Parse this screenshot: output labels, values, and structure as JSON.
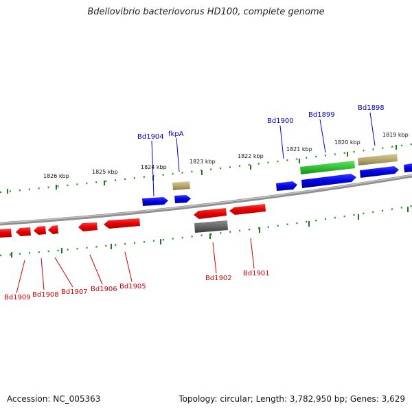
{
  "title": "Bdellovibrio bacteriovorus HD100, complete genome",
  "footer": {
    "accession": "Accession: NC_005363",
    "summary": "Topology: circular; Length: 3,782,950 bp; Genes: 3,629"
  },
  "ruler_labels": {
    "kbp_1826": "1826 kbp",
    "kbp_1825": "1825 kbp",
    "kbp_1824": "1824 kbp",
    "kbp_1823": "1823 kbp",
    "kbp_1822": "1822 kbp",
    "kbp_1821": "1821 kbp",
    "kbp_1820": "1820 kbp",
    "kbp_1819": "1819 kbp"
  },
  "gene_labels": {
    "bd1904": "Bd1904",
    "fkpA": "fkpA",
    "bd1900": "Bd1900",
    "bd1899": "Bd1899",
    "bd1898": "Bd1898",
    "bd1909": "Bd1909",
    "bd1908": "Bd1908",
    "bd1907": "Bd1907",
    "bd1906": "Bd1906",
    "bd1905": "Bd1905",
    "bd1902": "Bd1902",
    "bd1901": "Bd1901"
  },
  "colors": {
    "forward_gene": "#0000ee",
    "reverse_gene": "#ee0000",
    "rna_gene": "#33cc33",
    "pseudo_gene": "#b8a870",
    "other_gene": "#666666",
    "ruler": "#1a7a1a",
    "backbone": "#808080"
  }
}
